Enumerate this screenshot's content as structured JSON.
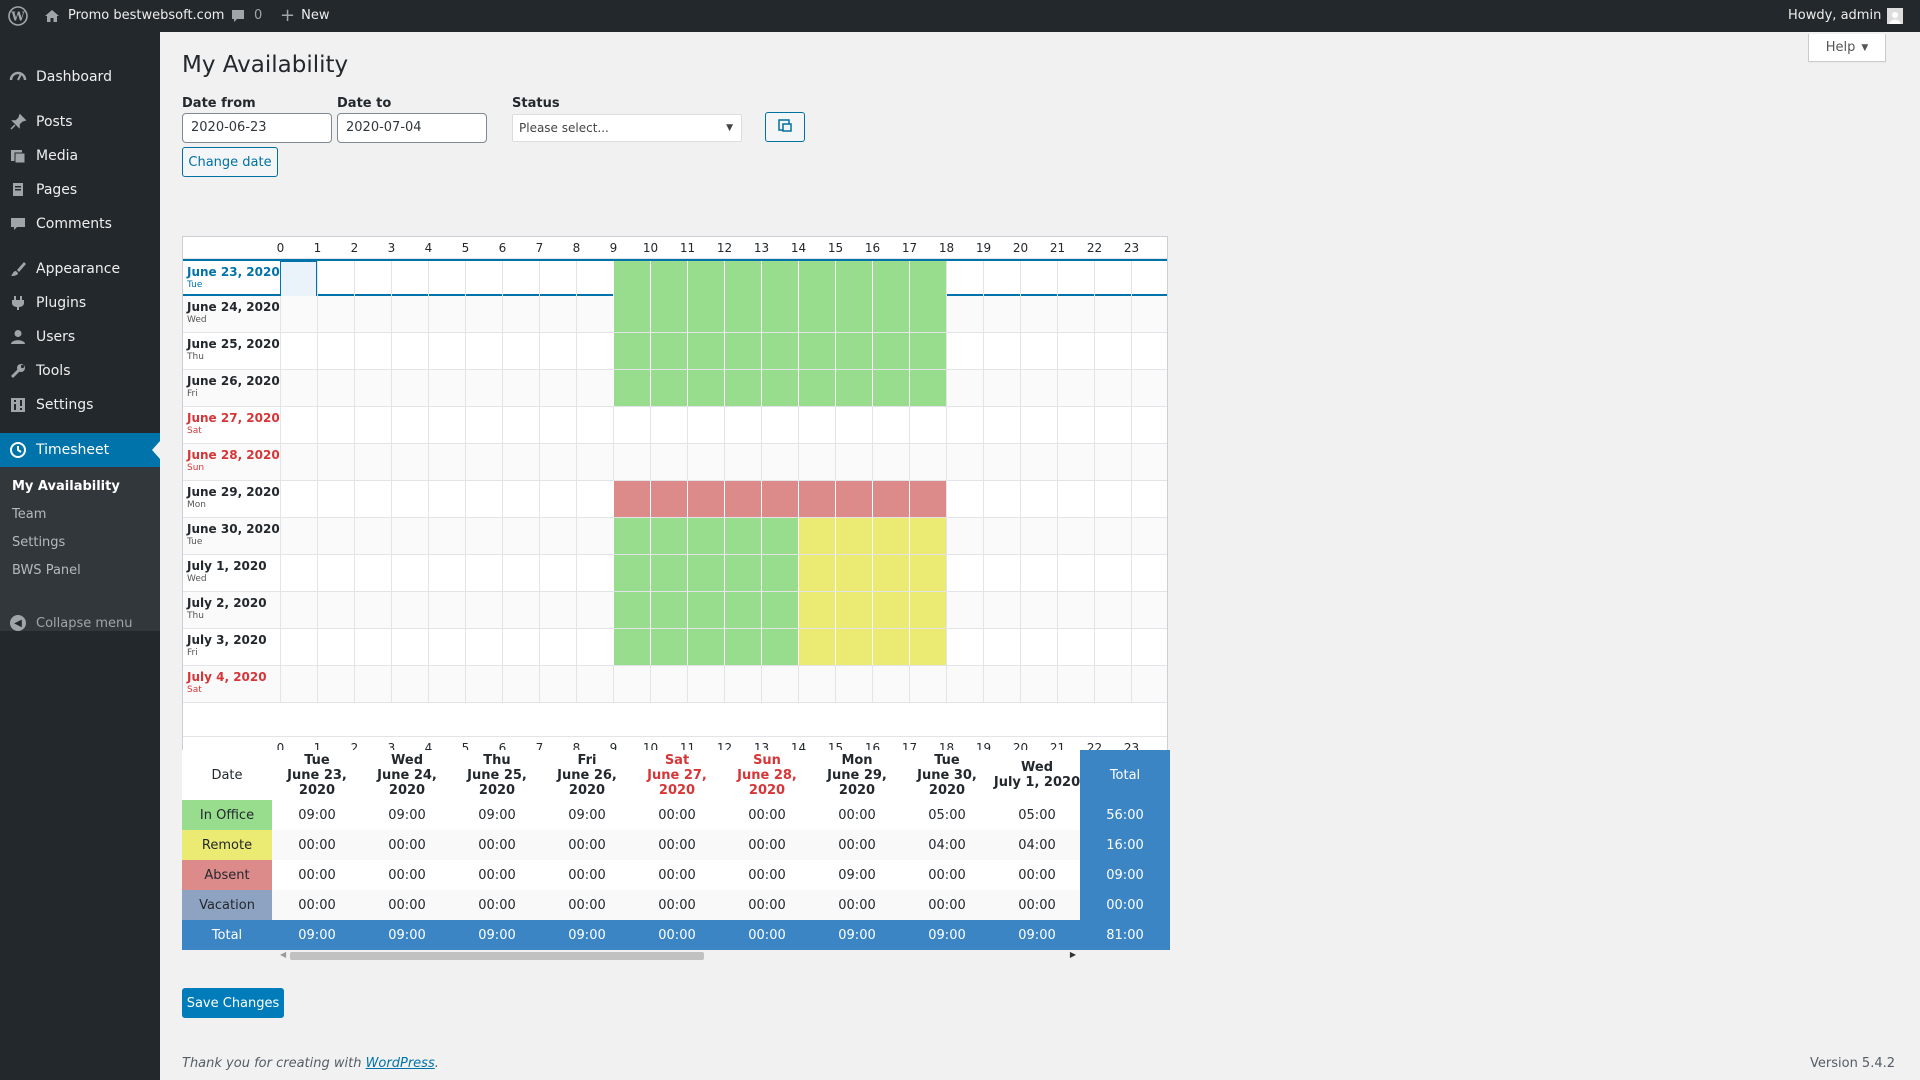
{
  "adminbar": {
    "site_name": "Promo bestwebsoft.com",
    "comments_count": "0",
    "new_label": "New",
    "howdy": "Howdy, admin"
  },
  "sidebar": {
    "items": [
      {
        "label": "Dashboard",
        "icon": "dashboard-icon"
      },
      {
        "label": "Posts",
        "icon": "pin-icon"
      },
      {
        "label": "Media",
        "icon": "media-icon"
      },
      {
        "label": "Pages",
        "icon": "pages-icon"
      },
      {
        "label": "Comments",
        "icon": "comments-icon"
      },
      {
        "label": "Appearance",
        "icon": "brush-icon"
      },
      {
        "label": "Plugins",
        "icon": "plugin-icon"
      },
      {
        "label": "Users",
        "icon": "users-icon"
      },
      {
        "label": "Tools",
        "icon": "wrench-icon"
      },
      {
        "label": "Settings",
        "icon": "settings-icon"
      },
      {
        "label": "Timesheet",
        "icon": "clock-icon"
      }
    ],
    "submenu": [
      "My Availability",
      "Team",
      "Settings",
      "BWS Panel"
    ],
    "collapse": "Collapse menu"
  },
  "page": {
    "title": "My Availability",
    "help": "Help",
    "date_from_label": "Date from",
    "date_from": "2020-06-23",
    "date_to_label": "Date to",
    "date_to": "2020-07-04",
    "status_label": "Status",
    "status_value": "Please select...",
    "change_date": "Change date",
    "save_changes": "Save Changes"
  },
  "colors": {
    "in_office": "#98dd8d",
    "remote": "#ebeb73",
    "absent": "#dd8a8a",
    "vacation": "#8ea3c1",
    "accent": "#0073aa",
    "weekend": "#d63638",
    "total_bg": "#3c85c4"
  },
  "grid": {
    "hours": [
      "0",
      "1",
      "2",
      "3",
      "4",
      "5",
      "6",
      "7",
      "8",
      "9",
      "10",
      "11",
      "12",
      "13",
      "14",
      "15",
      "16",
      "17",
      "18",
      "19",
      "20",
      "21",
      "22",
      "23"
    ],
    "rows": [
      {
        "date": "June 23, 2020",
        "day": "Tue",
        "weekend": false,
        "today": true,
        "cells": {
          "9": "office",
          "10": "office",
          "11": "office",
          "12": "office",
          "13": "office",
          "14": "office",
          "15": "office",
          "16": "office",
          "17": "office"
        }
      },
      {
        "date": "June 24, 2020",
        "day": "Wed",
        "weekend": false,
        "today": false,
        "cells": {
          "9": "office",
          "10": "office",
          "11": "office",
          "12": "office",
          "13": "office",
          "14": "office",
          "15": "office",
          "16": "office",
          "17": "office"
        }
      },
      {
        "date": "June 25, 2020",
        "day": "Thu",
        "weekend": false,
        "today": false,
        "cells": {
          "9": "office",
          "10": "office",
          "11": "office",
          "12": "office",
          "13": "office",
          "14": "office",
          "15": "office",
          "16": "office",
          "17": "office"
        }
      },
      {
        "date": "June 26, 2020",
        "day": "Fri",
        "weekend": false,
        "today": false,
        "cells": {
          "9": "office",
          "10": "office",
          "11": "office",
          "12": "office",
          "13": "office",
          "14": "office",
          "15": "office",
          "16": "office",
          "17": "office"
        }
      },
      {
        "date": "June 27, 2020",
        "day": "Sat",
        "weekend": true,
        "today": false,
        "cells": {}
      },
      {
        "date": "June 28, 2020",
        "day": "Sun",
        "weekend": true,
        "today": false,
        "cells": {}
      },
      {
        "date": "June 29, 2020",
        "day": "Mon",
        "weekend": false,
        "today": false,
        "cells": {
          "9": "absent",
          "10": "absent",
          "11": "absent",
          "12": "absent",
          "13": "absent",
          "14": "absent",
          "15": "absent",
          "16": "absent",
          "17": "absent"
        }
      },
      {
        "date": "June 30, 2020",
        "day": "Tue",
        "weekend": false,
        "today": false,
        "cells": {
          "9": "office",
          "10": "office",
          "11": "office",
          "12": "office",
          "13": "office",
          "14": "remote",
          "15": "remote",
          "16": "remote",
          "17": "remote"
        }
      },
      {
        "date": "July 1, 2020",
        "day": "Wed",
        "weekend": false,
        "today": false,
        "cells": {
          "9": "office",
          "10": "office",
          "11": "office",
          "12": "office",
          "13": "office",
          "14": "remote",
          "15": "remote",
          "16": "remote",
          "17": "remote"
        }
      },
      {
        "date": "July 2, 2020",
        "day": "Thu",
        "weekend": false,
        "today": false,
        "cells": {
          "9": "office",
          "10": "office",
          "11": "office",
          "12": "office",
          "13": "office",
          "14": "remote",
          "15": "remote",
          "16": "remote",
          "17": "remote"
        }
      },
      {
        "date": "July 3, 2020",
        "day": "Fri",
        "weekend": false,
        "today": false,
        "cells": {
          "9": "office",
          "10": "office",
          "11": "office",
          "12": "office",
          "13": "office",
          "14": "remote",
          "15": "remote",
          "16": "remote",
          "17": "remote"
        }
      },
      {
        "date": "July 4, 2020",
        "day": "Sat",
        "weekend": true,
        "today": false,
        "cells": {}
      }
    ]
  },
  "summary": {
    "date_header": "Date",
    "total_header": "Total",
    "columns": [
      {
        "day": "Tue",
        "date": "June 23, 2020",
        "weekend": false
      },
      {
        "day": "Wed",
        "date": "June 24, 2020",
        "weekend": false
      },
      {
        "day": "Thu",
        "date": "June 25, 2020",
        "weekend": false
      },
      {
        "day": "Fri",
        "date": "June 26, 2020",
        "weekend": false
      },
      {
        "day": "Sat",
        "date": "June 27, 2020",
        "weekend": true
      },
      {
        "day": "Sun",
        "date": "June 28, 2020",
        "weekend": true
      },
      {
        "day": "Mon",
        "date": "June 29, 2020",
        "weekend": false
      },
      {
        "day": "Tue",
        "date": "June 30, 2020",
        "weekend": false
      },
      {
        "day": "Wed",
        "date": "July 1, 2020",
        "weekend": false
      }
    ],
    "rows": [
      {
        "label": "In Office",
        "key": "in_office",
        "values": [
          "09:00",
          "09:00",
          "09:00",
          "09:00",
          "00:00",
          "00:00",
          "00:00",
          "05:00",
          "05:00"
        ],
        "total": "56:00"
      },
      {
        "label": "Remote",
        "key": "remote",
        "values": [
          "00:00",
          "00:00",
          "00:00",
          "00:00",
          "00:00",
          "00:00",
          "00:00",
          "04:00",
          "04:00"
        ],
        "total": "16:00"
      },
      {
        "label": "Absent",
        "key": "absent",
        "values": [
          "00:00",
          "00:00",
          "00:00",
          "00:00",
          "00:00",
          "00:00",
          "09:00",
          "00:00",
          "00:00"
        ],
        "total": "09:00"
      },
      {
        "label": "Vacation",
        "key": "vacation",
        "values": [
          "00:00",
          "00:00",
          "00:00",
          "00:00",
          "00:00",
          "00:00",
          "00:00",
          "00:00",
          "00:00"
        ],
        "total": "00:00"
      },
      {
        "label": "Total",
        "key": "total",
        "values": [
          "09:00",
          "09:00",
          "09:00",
          "09:00",
          "00:00",
          "00:00",
          "09:00",
          "09:00",
          "09:00"
        ],
        "total": "81:00"
      }
    ]
  },
  "footer": {
    "thanks_prefix": "Thank you for creating with ",
    "thanks_link": "WordPress",
    "thanks_suffix": ".",
    "version": "Version 5.4.2"
  }
}
